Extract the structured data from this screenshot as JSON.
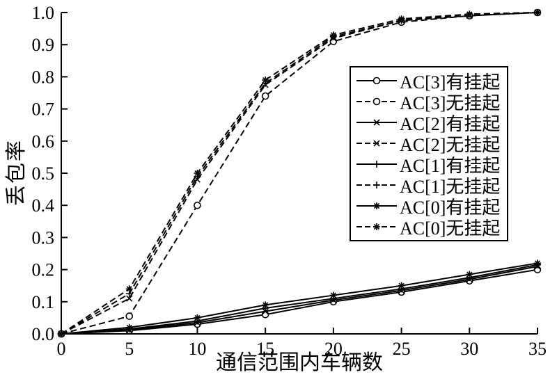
{
  "figure": {
    "background": "#ffffff",
    "line_color": "#000000"
  },
  "chart_data": {
    "type": "line",
    "title": "",
    "xlabel": "通信范围内车辆数",
    "ylabel": "丢包率",
    "xlim": [
      0,
      35
    ],
    "ylim": [
      0.0,
      1.0
    ],
    "grid": false,
    "legend_position": "inside-center-right",
    "x": [
      0,
      5,
      10,
      15,
      20,
      25,
      30,
      35
    ],
    "xtick_labels": [
      "0",
      "5",
      "10",
      "15",
      "20",
      "25",
      "30",
      "35"
    ],
    "ytick_values": [
      0,
      0.1,
      0.2,
      0.3,
      0.4,
      0.5,
      0.6,
      0.7,
      0.8,
      0.9,
      1.0
    ],
    "ytick_labels": [
      "0.0",
      "0.1",
      "0.2",
      "0.3",
      "0.4",
      "0.5",
      "0.6",
      "0.7",
      "0.8",
      "0.9",
      "1.0"
    ],
    "series": [
      {
        "name": "AC[3]有挂起",
        "marker": "circle",
        "line": "solid",
        "values": [
          0,
          0.01,
          0.03,
          0.06,
          0.1,
          0.13,
          0.165,
          0.2
        ]
      },
      {
        "name": "AC[3]无挂起",
        "marker": "circle",
        "line": "dashed",
        "values": [
          0,
          0.055,
          0.4,
          0.74,
          0.91,
          0.97,
          0.99,
          1.0
        ]
      },
      {
        "name": "AC[2]有挂起",
        "marker": "x",
        "line": "solid",
        "values": [
          0,
          0.012,
          0.035,
          0.07,
          0.105,
          0.135,
          0.17,
          0.21
        ]
      },
      {
        "name": "AC[2]无挂起",
        "marker": "x",
        "line": "dashed",
        "values": [
          0,
          0.11,
          0.48,
          0.775,
          0.92,
          0.975,
          0.99,
          1.0
        ]
      },
      {
        "name": "AC[1]有挂起",
        "marker": "plus",
        "line": "solid",
        "values": [
          0,
          0.015,
          0.04,
          0.08,
          0.11,
          0.14,
          0.175,
          0.215
        ]
      },
      {
        "name": "AC[1]无挂起",
        "marker": "plus",
        "line": "dashed",
        "values": [
          0,
          0.125,
          0.49,
          0.78,
          0.925,
          0.975,
          0.995,
          1.0
        ]
      },
      {
        "name": "AC[0]有挂起",
        "marker": "asterisk",
        "line": "solid",
        "values": [
          0,
          0.02,
          0.05,
          0.09,
          0.12,
          0.15,
          0.185,
          0.22
        ]
      },
      {
        "name": "AC[0]无挂起",
        "marker": "asterisk",
        "line": "dashed",
        "values": [
          0,
          0.14,
          0.5,
          0.79,
          0.93,
          0.98,
          0.995,
          1.0
        ]
      }
    ]
  }
}
